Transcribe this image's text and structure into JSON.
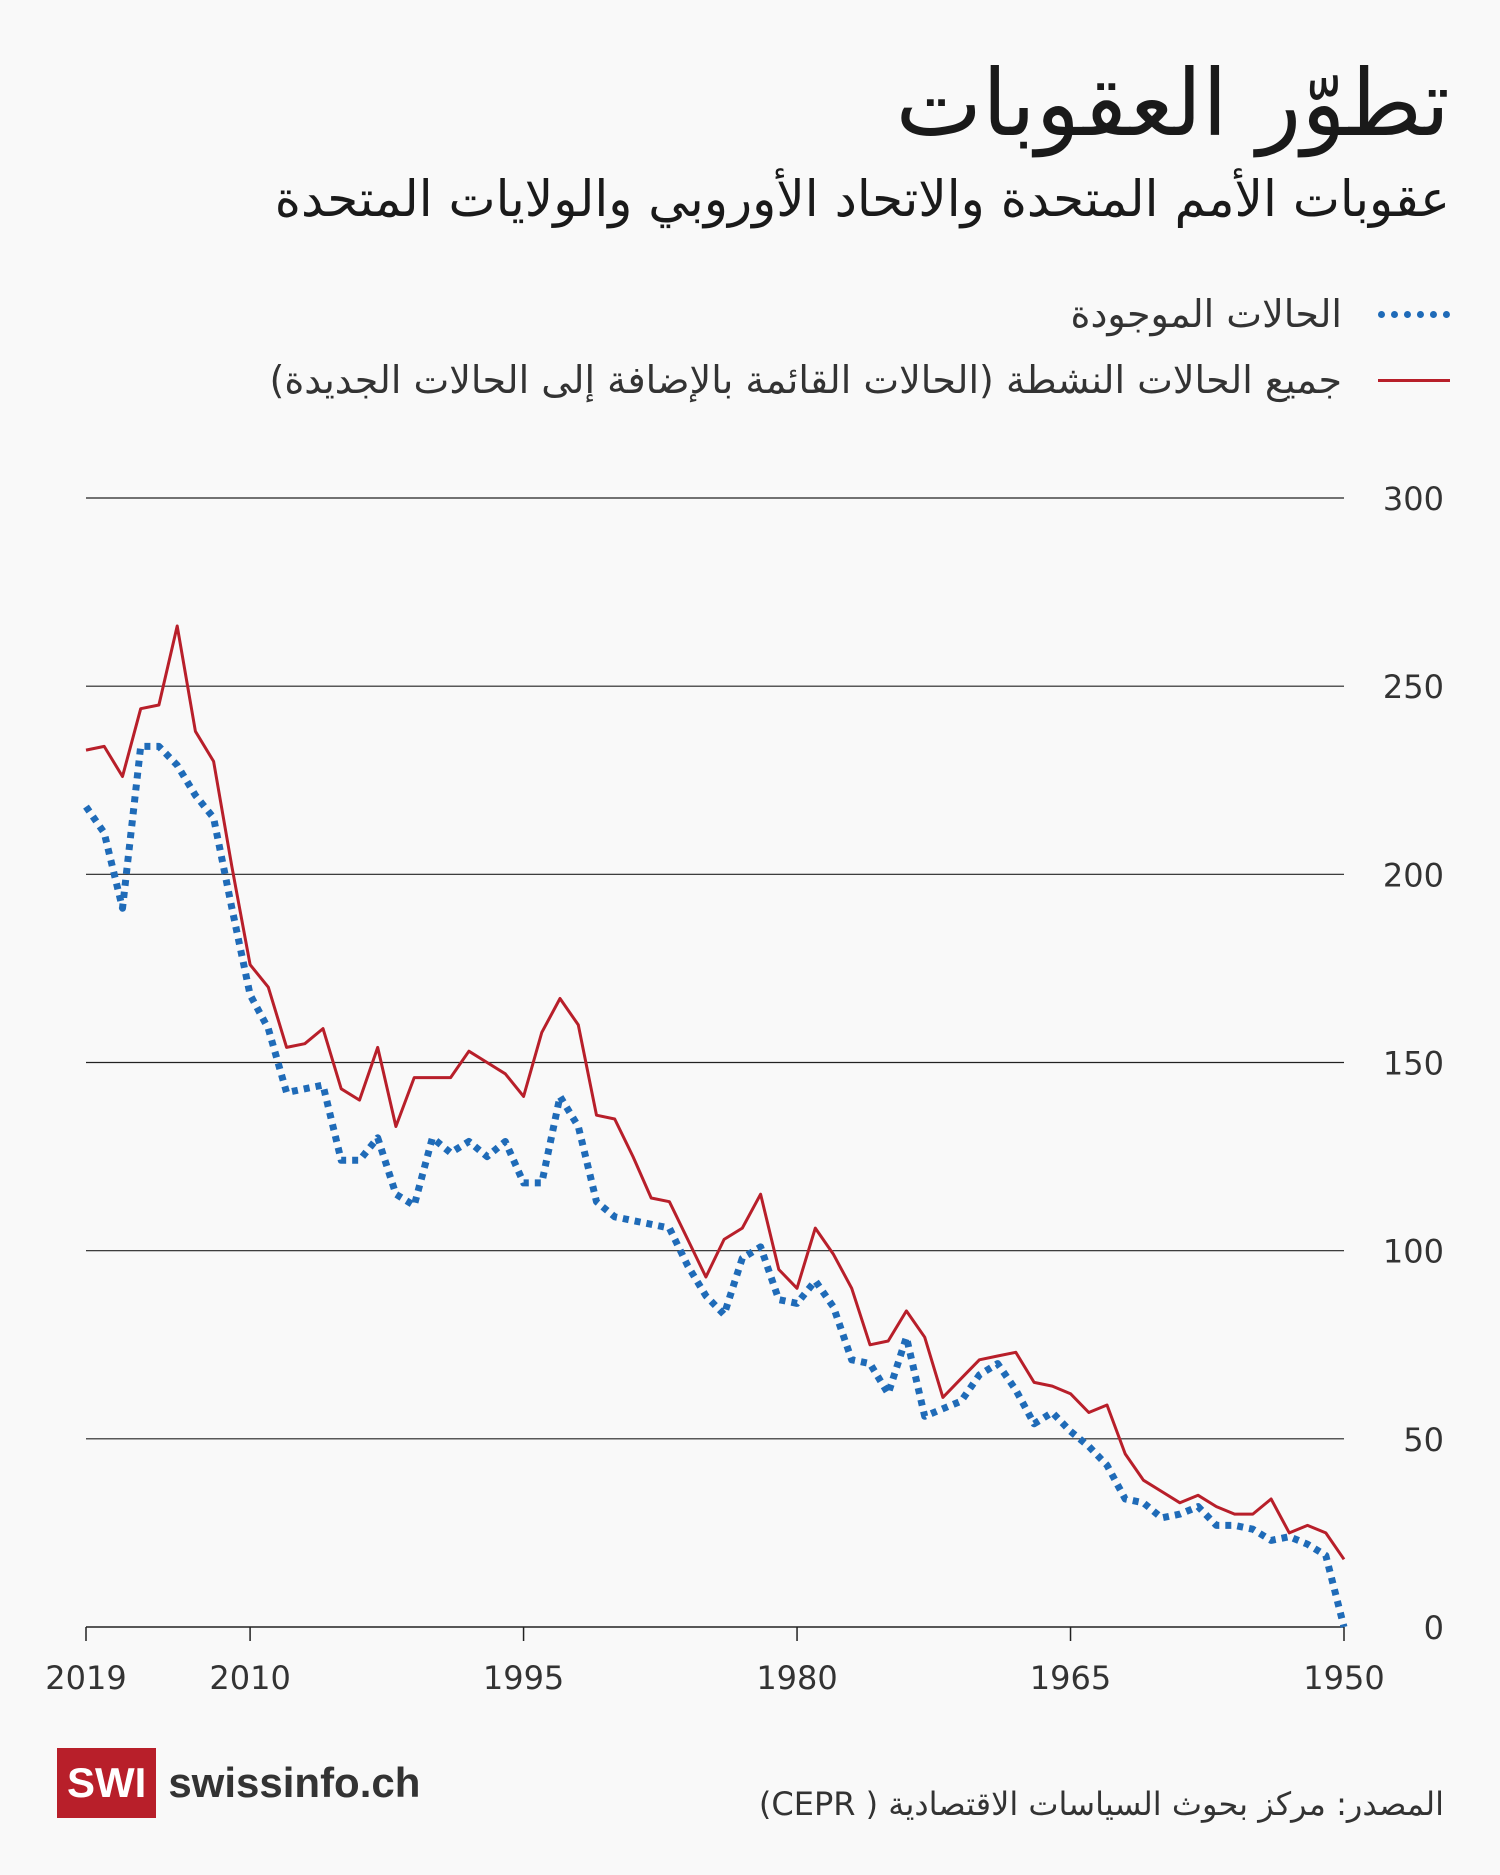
{
  "title": "تطوّر العقوبات",
  "subtitle": "عقوبات الأمم المتحدة والاتحاد الأوروبي والولايات المتحدة",
  "footer": {
    "logo": "SWI",
    "site": "swissinfo.ch",
    "source": "المصدر: مركز بحوث السياسات الاقتصادية ( CEPR)"
  },
  "chart_data": {
    "type": "line",
    "title": "تطوّر العقوبات",
    "xlabel": "",
    "ylabel": "",
    "xlim": [
      2019,
      1950
    ],
    "ylim": [
      0,
      300
    ],
    "yticks": [
      0,
      50,
      100,
      150,
      200,
      250,
      300
    ],
    "xticks": [
      2019,
      2010,
      1995,
      1980,
      1965,
      1950
    ],
    "grid": true,
    "legend_position": "top",
    "x": [
      2019,
      2018,
      2017,
      2016,
      2015,
      2014,
      2013,
      2012,
      2011,
      2010,
      2009,
      2008,
      2007,
      2006,
      2005,
      2004,
      2003,
      2002,
      2001,
      2000,
      1999,
      1998,
      1997,
      1996,
      1995,
      1994,
      1993,
      1992,
      1991,
      1990,
      1989,
      1988,
      1987,
      1986,
      1985,
      1984,
      1983,
      1982,
      1981,
      1980,
      1979,
      1978,
      1977,
      1976,
      1975,
      1974,
      1973,
      1972,
      1971,
      1970,
      1969,
      1968,
      1967,
      1966,
      1965,
      1964,
      1963,
      1962,
      1961,
      1960,
      1959,
      1958,
      1957,
      1956,
      1955,
      1954,
      1953,
      1952,
      1951,
      1950
    ],
    "series": [
      {
        "name": "الحالات الموجودة",
        "color": "#1f6bb8",
        "style": "dotted",
        "values": [
          218,
          211,
          191,
          234,
          234,
          229,
          221,
          215,
          191,
          168,
          159,
          142,
          143,
          144,
          124,
          124,
          130,
          115,
          112,
          130,
          126,
          129,
          125,
          129,
          118,
          118,
          141,
          133,
          113,
          109,
          108,
          107,
          106,
          96,
          88,
          83,
          98,
          101,
          87,
          86,
          92,
          85,
          71,
          70,
          62,
          77,
          56,
          58,
          60,
          67,
          70,
          63,
          54,
          57,
          52,
          48,
          43,
          34,
          33,
          29,
          30,
          32,
          27,
          27,
          26,
          23,
          24,
          22,
          19,
          0
        ]
      },
      {
        "name": "جميع الحالات النشطة (الحالات القائمة بالإضافة إلى الحالات الجديدة)",
        "color": "#b81f2a",
        "style": "solid",
        "values": [
          233,
          234,
          226,
          244,
          245,
          266,
          238,
          230,
          202,
          176,
          170,
          154,
          155,
          159,
          143,
          140,
          154,
          133,
          146,
          146,
          146,
          153,
          150,
          147,
          141,
          158,
          167,
          160,
          136,
          135,
          125,
          114,
          113,
          103,
          93,
          103,
          106,
          115,
          95,
          90,
          106,
          99,
          90,
          75,
          76,
          84,
          77,
          61,
          66,
          71,
          72,
          73,
          65,
          64,
          62,
          57,
          59,
          46,
          39,
          36,
          33,
          35,
          32,
          30,
          30,
          34,
          25,
          27,
          25,
          18
        ]
      }
    ]
  }
}
